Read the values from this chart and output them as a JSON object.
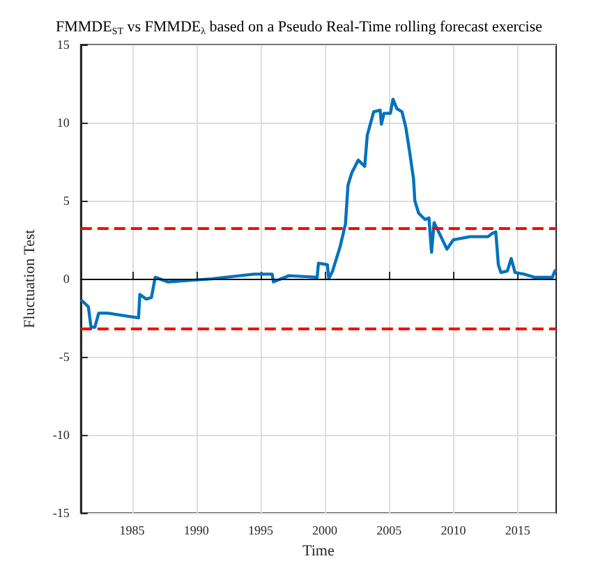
{
  "chart_data": {
    "type": "line",
    "title": "FMMDE$_{ST}$ vs FMMDE$_{λ}$ based on a Pseudo Real-Time rolling forecast exercise",
    "xlabel": "Time",
    "ylabel": "Fluctuation Test",
    "xlim": [
      1981,
      2018
    ],
    "xticks": [
      1985,
      1990,
      1995,
      2000,
      2005,
      2010,
      2015
    ],
    "ylim": [
      -15,
      15
    ],
    "yticks": [
      -15,
      -10,
      -5,
      0,
      5,
      10,
      15
    ],
    "grid": true,
    "marker": "none",
    "line_style": "solid",
    "series": [
      {
        "color": "#0072bd",
        "x": [
          1981.1,
          1981.6,
          1981.8,
          1982.1,
          1982.4,
          1983.1,
          1985.5,
          1985.6,
          1986.1,
          1986.5,
          1986.8,
          1987.8,
          1991.2,
          1994.5,
          1995.9,
          1996.0,
          1997.2,
          1999.4,
          1999.5,
          2000.2,
          2000.3,
          2000.6,
          2001.2,
          2001.6,
          2001.8,
          2002.1,
          2002.6,
          2003.1,
          2003.3,
          2003.8,
          2004.3,
          2004.4,
          2004.6,
          2005.1,
          2005.3,
          2005.6,
          2006.0,
          2006.3,
          2006.6,
          2006.9,
          2007.0,
          2007.3,
          2007.8,
          2008.1,
          2008.3,
          2008.5,
          2008.8,
          2009.5,
          2010.0,
          2011.3,
          2012.7,
          2013.0,
          2013.3,
          2013.5,
          2013.7,
          2014.2,
          2014.5,
          2014.8,
          2015.5,
          2016.3,
          2017.7,
          2017.9
        ],
        "values": [
          -1.4,
          -1.8,
          -3.1,
          -3.1,
          -2.2,
          -2.2,
          -2.5,
          -1.0,
          -1.3,
          -1.2,
          0.1,
          -0.2,
          0,
          0.3,
          0.3,
          -0.2,
          0.2,
          0.1,
          1.0,
          0.9,
          0,
          0.5,
          2.1,
          3.5,
          6.0,
          6.8,
          7.6,
          7.2,
          9.2,
          10.7,
          10.8,
          9.9,
          10.6,
          10.6,
          11.5,
          10.9,
          10.7,
          9.7,
          8.1,
          6.4,
          5.0,
          4.2,
          3.8,
          3.9,
          1.7,
          3.6,
          3.1,
          1.9,
          2.5,
          2.7,
          2.7,
          2.9,
          3.0,
          0.9,
          0.4,
          0.5,
          1.3,
          0.4,
          0.3,
          0.1,
          0.1,
          0.5
        ]
      }
    ],
    "ref_lines": [
      {
        "axis": "y",
        "value": 3.2,
        "color": "#ff0000",
        "line_style": "dashed"
      },
      {
        "axis": "y",
        "value": -3.2,
        "color": "#ff0000",
        "line_style": "dashed"
      },
      {
        "axis": "y",
        "value": 0,
        "color": "#000000",
        "line_style": "solid"
      }
    ]
  }
}
